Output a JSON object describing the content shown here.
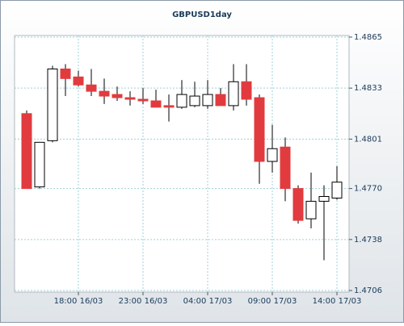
{
  "chart_data": {
    "type": "candlestick",
    "title": "GBPUSD1day",
    "categories": [
      null,
      null,
      null,
      null,
      "18:00 16/03",
      null,
      null,
      null,
      null,
      "23:00 16/03",
      null,
      null,
      null,
      null,
      "04:00 17/03",
      null,
      null,
      null,
      null,
      "09:00 17/03",
      null,
      null,
      null,
      null,
      "14:00 17/03"
    ],
    "open": [
      1.4817,
      1.4771,
      1.48,
      1.4845,
      1.484,
      1.4835,
      1.4831,
      1.4829,
      1.4827,
      1.4826,
      1.4825,
      1.4822,
      1.4821,
      1.4822,
      1.4822,
      1.4829,
      1.4822,
      1.4837,
      1.4827,
      1.4787,
      1.4796,
      1.477,
      1.4751,
      1.4762,
      1.4764
    ],
    "high": [
      1.4819,
      1.4799,
      1.4847,
      1.4848,
      1.4844,
      1.4845,
      1.4839,
      1.4834,
      1.4831,
      1.4833,
      1.4832,
      1.4829,
      1.4838,
      1.4837,
      1.4838,
      1.4833,
      1.4848,
      1.4848,
      1.4829,
      1.481,
      1.4802,
      1.4772,
      1.478,
      1.4772,
      1.4784
    ],
    "low": [
      1.477,
      1.477,
      1.4799,
      1.4828,
      1.4834,
      1.4828,
      1.4823,
      1.4825,
      1.4822,
      1.4823,
      1.4821,
      1.4812,
      1.482,
      1.4821,
      1.482,
      1.4822,
      1.4819,
      1.4822,
      1.4773,
      1.478,
      1.4762,
      1.4748,
      1.4745,
      1.4725,
      1.4763
    ],
    "close": [
      1.477,
      1.4799,
      1.4845,
      1.4839,
      1.4835,
      1.4831,
      1.4828,
      1.4827,
      1.4826,
      1.4825,
      1.4821,
      1.4821,
      1.4829,
      1.4828,
      1.4829,
      1.4822,
      1.4837,
      1.4826,
      1.4787,
      1.4795,
      1.477,
      1.475,
      1.4762,
      1.4765,
      1.4774
    ],
    "up_color": "#ffffff",
    "down_color": "#e23b3f",
    "ylim": [
      1.4705,
      1.4866
    ],
    "yticks": [
      1.4706,
      1.4738,
      {
        "value": 1.477,
        "label": "1.4770"
      },
      1.4801,
      1.4833,
      1.4865
    ],
    "grid": true
  }
}
